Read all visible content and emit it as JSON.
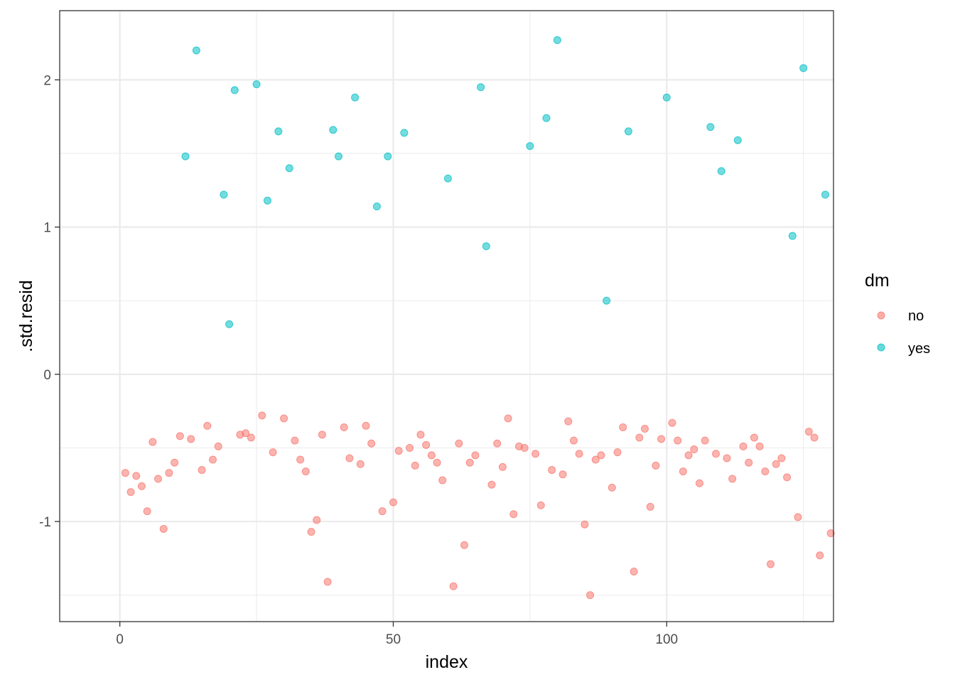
{
  "chart_data": {
    "type": "scatter",
    "xlabel": "index",
    "ylabel": ".std.resid",
    "xlim": [
      -11,
      130.5
    ],
    "ylim": [
      -1.68,
      2.47
    ],
    "x_ticks": [
      0,
      50,
      100
    ],
    "x_tick_labels": [
      "0",
      "50",
      "100"
    ],
    "y_ticks": [
      -1,
      0,
      1,
      2
    ],
    "y_tick_labels": [
      "-1",
      "0",
      "1",
      "2"
    ],
    "grid": true,
    "legend": {
      "title": "dm",
      "position": "right",
      "entries": [
        {
          "label": "no",
          "color": "#F8766D"
        },
        {
          "label": "yes",
          "color": "#00BFC4"
        }
      ]
    },
    "series": [
      {
        "name": "no",
        "color": "#F8766D",
        "points": [
          [
            1,
            -0.67
          ],
          [
            2,
            -0.8
          ],
          [
            3,
            -0.69
          ],
          [
            4,
            -0.76
          ],
          [
            5,
            -0.93
          ],
          [
            6,
            -0.46
          ],
          [
            7,
            -0.71
          ],
          [
            8,
            -1.05
          ],
          [
            9,
            -0.67
          ],
          [
            10,
            -0.6
          ],
          [
            11,
            -0.42
          ],
          [
            13,
            -0.44
          ],
          [
            15,
            -0.65
          ],
          [
            16,
            -0.35
          ],
          [
            17,
            -0.58
          ],
          [
            18,
            -0.49
          ],
          [
            22,
            -0.41
          ],
          [
            23,
            -0.4
          ],
          [
            24,
            -0.43
          ],
          [
            26,
            -0.28
          ],
          [
            28,
            -0.53
          ],
          [
            30,
            -0.3
          ],
          [
            32,
            -0.45
          ],
          [
            33,
            -0.58
          ],
          [
            34,
            -0.66
          ],
          [
            35,
            -1.07
          ],
          [
            36,
            -0.99
          ],
          [
            37,
            -0.41
          ],
          [
            38,
            -1.41
          ],
          [
            41,
            -0.36
          ],
          [
            42,
            -0.57
          ],
          [
            44,
            -0.61
          ],
          [
            45,
            -0.35
          ],
          [
            46,
            -0.47
          ],
          [
            48,
            -0.93
          ],
          [
            50,
            -0.87
          ],
          [
            51,
            -0.52
          ],
          [
            53,
            -0.5
          ],
          [
            54,
            -0.62
          ],
          [
            55,
            -0.41
          ],
          [
            56,
            -0.48
          ],
          [
            57,
            -0.55
          ],
          [
            58,
            -0.6
          ],
          [
            59,
            -0.72
          ],
          [
            61,
            -1.44
          ],
          [
            62,
            -0.47
          ],
          [
            63,
            -1.16
          ],
          [
            64,
            -0.6
          ],
          [
            65,
            -0.55
          ],
          [
            68,
            -0.75
          ],
          [
            69,
            -0.47
          ],
          [
            70,
            -0.63
          ],
          [
            71,
            -0.3
          ],
          [
            72,
            -0.95
          ],
          [
            73,
            -0.49
          ],
          [
            74,
            -0.5
          ],
          [
            76,
            -0.54
          ],
          [
            77,
            -0.89
          ],
          [
            79,
            -0.65
          ],
          [
            81,
            -0.68
          ],
          [
            82,
            -0.32
          ],
          [
            83,
            -0.45
          ],
          [
            84,
            -0.54
          ],
          [
            85,
            -1.02
          ],
          [
            86,
            -1.5
          ],
          [
            87,
            -0.58
          ],
          [
            88,
            -0.55
          ],
          [
            90,
            -0.77
          ],
          [
            91,
            -0.53
          ],
          [
            92,
            -0.36
          ],
          [
            94,
            -1.34
          ],
          [
            95,
            -0.43
          ],
          [
            96,
            -0.37
          ],
          [
            97,
            -0.9
          ],
          [
            98,
            -0.62
          ],
          [
            99,
            -0.44
          ],
          [
            101,
            -0.33
          ],
          [
            102,
            -0.45
          ],
          [
            103,
            -0.66
          ],
          [
            104,
            -0.55
          ],
          [
            105,
            -0.51
          ],
          [
            106,
            -0.74
          ],
          [
            107,
            -0.45
          ],
          [
            109,
            -0.54
          ],
          [
            111,
            -0.57
          ],
          [
            112,
            -0.71
          ],
          [
            114,
            -0.49
          ],
          [
            115,
            -0.6
          ],
          [
            116,
            -0.43
          ],
          [
            117,
            -0.49
          ],
          [
            118,
            -0.66
          ],
          [
            119,
            -1.29
          ],
          [
            120,
            -0.61
          ],
          [
            121,
            -0.57
          ],
          [
            122,
            -0.7
          ],
          [
            124,
            -0.97
          ],
          [
            126,
            -0.39
          ],
          [
            127,
            -0.43
          ],
          [
            128,
            -1.23
          ],
          [
            130,
            -1.08
          ]
        ]
      },
      {
        "name": "yes",
        "color": "#00BFC4",
        "points": [
          [
            12,
            1.48
          ],
          [
            14,
            2.2
          ],
          [
            19,
            1.22
          ],
          [
            20,
            0.34
          ],
          [
            21,
            1.93
          ],
          [
            25,
            1.97
          ],
          [
            27,
            1.18
          ],
          [
            29,
            1.65
          ],
          [
            31,
            1.4
          ],
          [
            39,
            1.66
          ],
          [
            40,
            1.48
          ],
          [
            43,
            1.88
          ],
          [
            47,
            1.14
          ],
          [
            49,
            1.48
          ],
          [
            52,
            1.64
          ],
          [
            60,
            1.33
          ],
          [
            66,
            1.95
          ],
          [
            67,
            0.87
          ],
          [
            75,
            1.55
          ],
          [
            78,
            1.74
          ],
          [
            80,
            2.27
          ],
          [
            89,
            0.5
          ],
          [
            93,
            1.65
          ],
          [
            100,
            1.88
          ],
          [
            108,
            1.68
          ],
          [
            110,
            1.38
          ],
          [
            113,
            1.59
          ],
          [
            123,
            0.94
          ],
          [
            125,
            2.08
          ],
          [
            129,
            1.22
          ]
        ]
      }
    ]
  }
}
